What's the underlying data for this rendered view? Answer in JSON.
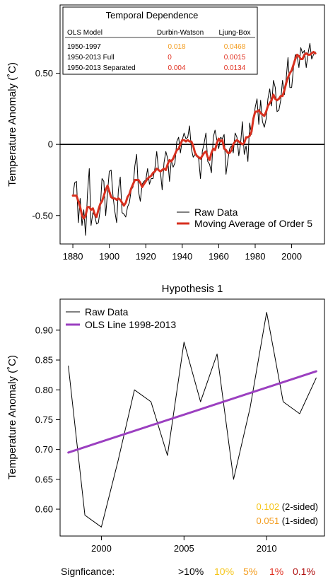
{
  "chart_data": [
    {
      "type": "line",
      "ylabel": "Temperature Anomaly (˚C)",
      "xlim": [
        1873,
        2018
      ],
      "ylim": [
        -0.7,
        0.98
      ],
      "x_ticks": [
        1880,
        1900,
        1920,
        1940,
        1960,
        1980,
        2000
      ],
      "y_ticks": [
        {
          "value": -0.5,
          "label": "-0.50"
        },
        {
          "value": 0,
          "label": "0"
        },
        {
          "value": 0.5,
          "label": "0.50"
        }
      ],
      "zero_line": true,
      "series": [
        {
          "name": "Raw Data",
          "color": "#000000",
          "x": [
            1880,
            1881,
            1882,
            1883,
            1884,
            1885,
            1886,
            1887,
            1888,
            1889,
            1890,
            1891,
            1892,
            1893,
            1894,
            1895,
            1896,
            1897,
            1898,
            1899,
            1900,
            1901,
            1902,
            1903,
            1904,
            1905,
            1906,
            1907,
            1908,
            1909,
            1910,
            1911,
            1912,
            1913,
            1914,
            1915,
            1916,
            1917,
            1918,
            1919,
            1920,
            1921,
            1922,
            1923,
            1924,
            1925,
            1926,
            1927,
            1928,
            1929,
            1930,
            1931,
            1932,
            1933,
            1934,
            1935,
            1936,
            1937,
            1938,
            1939,
            1940,
            1941,
            1942,
            1943,
            1944,
            1945,
            1946,
            1947,
            1948,
            1949,
            1950,
            1951,
            1952,
            1953,
            1954,
            1955,
            1956,
            1957,
            1958,
            1959,
            1960,
            1961,
            1962,
            1963,
            1964,
            1965,
            1966,
            1967,
            1968,
            1969,
            1970,
            1971,
            1972,
            1973,
            1974,
            1975,
            1976,
            1977,
            1978,
            1979,
            1980,
            1981,
            1982,
            1983,
            1984,
            1985,
            1986,
            1987,
            1988,
            1989,
            1990,
            1991,
            1992,
            1993,
            1994,
            1995,
            1996,
            1997,
            1998,
            1999,
            2000,
            2001,
            2002,
            2003,
            2004,
            2005,
            2006,
            2007,
            2008,
            2009,
            2010,
            2011,
            2012,
            2013
          ],
          "y": [
            -0.36,
            -0.27,
            -0.26,
            -0.55,
            -0.38,
            -0.57,
            -0.46,
            -0.64,
            -0.35,
            -0.17,
            -0.57,
            -0.48,
            -0.5,
            -0.56,
            -0.55,
            -0.46,
            -0.24,
            -0.26,
            -0.5,
            -0.34,
            -0.19,
            -0.18,
            -0.36,
            -0.47,
            -0.55,
            -0.32,
            -0.23,
            -0.48,
            -0.49,
            -0.51,
            -0.44,
            -0.41,
            -0.32,
            -0.3,
            -0.15,
            -0.07,
            -0.33,
            -0.4,
            -0.28,
            -0.26,
            -0.25,
            -0.17,
            -0.28,
            -0.24,
            -0.24,
            -0.17,
            -0.05,
            -0.18,
            -0.19,
            -0.32,
            -0.13,
            -0.05,
            -0.1,
            -0.26,
            -0.11,
            -0.16,
            -0.13,
            0.02,
            0.05,
            -0.06,
            0.03,
            0.08,
            0.04,
            0.05,
            0.13,
            -0.03,
            -0.09,
            -0.07,
            -0.08,
            -0.1,
            -0.24,
            -0.05,
            0.01,
            0.08,
            -0.12,
            -0.14,
            -0.2,
            0.05,
            0.1,
            0.03,
            -0.03,
            0.05,
            0.04,
            0.07,
            -0.21,
            -0.11,
            -0.03,
            -0.01,
            -0.06,
            0.08,
            0.05,
            -0.08,
            0.01,
            0.16,
            -0.07,
            -0.01,
            -0.12,
            0.15,
            0.07,
            0.16,
            0.26,
            0.32,
            0.14,
            0.31,
            0.16,
            0.12,
            0.18,
            0.32,
            0.39,
            0.27,
            0.45,
            0.4,
            0.23,
            0.24,
            0.31,
            0.45,
            0.35,
            0.46,
            0.61,
            0.4,
            0.4,
            0.54,
            0.63,
            0.62,
            0.54,
            0.68,
            0.64,
            0.66,
            0.54,
            0.64,
            0.71,
            0.6,
            0.63,
            0.65
          ]
        },
        {
          "name": "Moving Average of Order 5",
          "color": "#d7301f",
          "x": [
            1880,
            1881,
            1882,
            1883,
            1884,
            1885,
            1886,
            1887,
            1888,
            1889,
            1890,
            1891,
            1892,
            1893,
            1894,
            1895,
            1896,
            1897,
            1898,
            1899,
            1900,
            1901,
            1902,
            1903,
            1904,
            1905,
            1906,
            1907,
            1908,
            1909,
            1910,
            1911,
            1912,
            1913,
            1914,
            1915,
            1916,
            1917,
            1918,
            1919,
            1920,
            1921,
            1922,
            1923,
            1924,
            1925,
            1926,
            1927,
            1928,
            1929,
            1930,
            1931,
            1932,
            1933,
            1934,
            1935,
            1936,
            1937,
            1938,
            1939,
            1940,
            1941,
            1942,
            1943,
            1944,
            1945,
            1946,
            1947,
            1948,
            1949,
            1950,
            1951,
            1952,
            1953,
            1954,
            1955,
            1956,
            1957,
            1958,
            1959,
            1960,
            1961,
            1962,
            1963,
            1964,
            1965,
            1966,
            1967,
            1968,
            1969,
            1970,
            1971,
            1972,
            1973,
            1974,
            1975,
            1976,
            1977,
            1978,
            1979,
            1980,
            1981,
            1982,
            1983,
            1984,
            1985,
            1986,
            1987,
            1988,
            1989,
            1990,
            1991,
            1992,
            1993,
            1994,
            1995,
            1996,
            1997,
            1998,
            1999,
            2000,
            2001,
            2002,
            2003,
            2004,
            2005,
            2006,
            2007,
            2008,
            2009,
            2010,
            2011,
            2012,
            2013
          ],
          "y": [
            -0.36,
            -0.36,
            -0.36,
            -0.4,
            -0.44,
            -0.5,
            -0.52,
            -0.5,
            -0.44,
            -0.44,
            -0.46,
            -0.45,
            -0.49,
            -0.51,
            -0.46,
            -0.42,
            -0.4,
            -0.36,
            -0.32,
            -0.29,
            -0.33,
            -0.37,
            -0.38,
            -0.38,
            -0.39,
            -0.38,
            -0.39,
            -0.41,
            -0.43,
            -0.41,
            -0.37,
            -0.35,
            -0.31,
            -0.28,
            -0.25,
            -0.25,
            -0.25,
            -0.27,
            -0.3,
            -0.28,
            -0.26,
            -0.24,
            -0.23,
            -0.22,
            -0.2,
            -0.19,
            -0.17,
            -0.18,
            -0.19,
            -0.18,
            -0.17,
            -0.18,
            -0.14,
            -0.11,
            -0.12,
            -0.1,
            -0.07,
            -0.04,
            -0.03,
            0.0,
            0.03,
            0.03,
            0.02,
            0.03,
            0.02,
            0.02,
            -0.01,
            -0.06,
            -0.08,
            -0.09,
            -0.1,
            -0.08,
            -0.06,
            -0.05,
            -0.09,
            -0.11,
            -0.06,
            -0.03,
            -0.04,
            0.01,
            0.04,
            0.02,
            0.03,
            -0.03,
            -0.04,
            -0.06,
            -0.06,
            -0.04,
            0.0,
            0.02,
            0.03,
            0.02,
            0.01,
            0.0,
            0.01,
            0.05,
            0.05,
            0.06,
            0.09,
            0.18,
            0.23,
            0.23,
            0.24,
            0.22,
            0.21,
            0.2,
            0.23,
            0.27,
            0.29,
            0.31,
            0.35,
            0.32,
            0.31,
            0.32,
            0.34,
            0.34,
            0.38,
            0.43,
            0.47,
            0.5,
            0.52,
            0.56,
            0.6,
            0.63,
            0.62,
            0.6,
            0.6,
            0.63,
            0.64,
            0.63,
            0.63,
            0.64,
            0.65,
            0.64
          ]
        }
      ],
      "legend": {
        "position": "bottom-right",
        "entries": [
          {
            "label": "Raw Data",
            "color": "#000000",
            "width": 1
          },
          {
            "label": "Moving Average of Order 5",
            "color": "#d7301f",
            "width": 3
          }
        ]
      },
      "table": {
        "title": "Temporal Dependence",
        "headers": [
          "OLS Model",
          "Durbin-Watson",
          "Ljung-Box"
        ],
        "rows": [
          {
            "model": "1950-1997",
            "dw": "0.018",
            "dw_color": "#f39c1e",
            "lb": "0.0468",
            "lb_color": "#f39c1e"
          },
          {
            "model": "1950-2013 Full",
            "dw": "0",
            "dw_color": "#e03020",
            "lb": "0.0015",
            "lb_color": "#e03020"
          },
          {
            "model": "1950-2013 Separated",
            "dw": "0.004",
            "dw_color": "#e03020",
            "lb": "0.0134",
            "lb_color": "#e03020"
          }
        ]
      }
    },
    {
      "type": "line",
      "title": "Hypothesis 1",
      "ylabel": "Temperature Anomaly (˚C)",
      "xlim": [
        1997.5,
        2013.5
      ],
      "ylim": [
        0.555,
        0.952
      ],
      "x_ticks": [
        2000,
        2005,
        2010
      ],
      "y_ticks": [
        {
          "value": 0.6,
          "label": "0.60"
        },
        {
          "value": 0.65,
          "label": "0.65"
        },
        {
          "value": 0.7,
          "label": "0.70"
        },
        {
          "value": 0.75,
          "label": "0.75"
        },
        {
          "value": 0.8,
          "label": "0.80"
        },
        {
          "value": 0.85,
          "label": "0.85"
        },
        {
          "value": 0.9,
          "label": "0.90"
        }
      ],
      "series": [
        {
          "name": "Raw Data",
          "color": "#000000",
          "x": [
            1998,
            1999,
            2000,
            2001,
            2002,
            2003,
            2004,
            2005,
            2006,
            2007,
            2008,
            2009,
            2010,
            2011,
            2012,
            2013
          ],
          "y": [
            0.84,
            0.59,
            0.57,
            0.68,
            0.8,
            0.78,
            0.69,
            0.88,
            0.78,
            0.86,
            0.65,
            0.77,
            0.93,
            0.78,
            0.76,
            0.82
          ]
        },
        {
          "name": "OLS Line 1998-2013",
          "color": "#9b3fc0",
          "x": [
            1998,
            2013
          ],
          "y": [
            0.695,
            0.831
          ]
        }
      ],
      "legend": {
        "position": "top-left",
        "entries": [
          {
            "label": "Raw Data",
            "color": "#000000",
            "width": 1
          },
          {
            "label": "OLS Line 1998-2013",
            "color": "#9b3fc0",
            "width": 3
          }
        ]
      },
      "annotations": [
        {
          "value": "0.102",
          "value_color": "#f5c518",
          "text": "(2-sided)"
        },
        {
          "value": "0.051",
          "value_color": "#f39c1e",
          "text": "(1-sided)"
        }
      ]
    }
  ],
  "significance": {
    "label": "Signficance:",
    "levels": [
      {
        "text": ">10%",
        "color": "#000000"
      },
      {
        "text": "10%",
        "color": "#f5c518"
      },
      {
        "text": "5%",
        "color": "#f39c1e"
      },
      {
        "text": "1%",
        "color": "#e03020"
      },
      {
        "text": "0.1%",
        "color": "#b01010"
      }
    ]
  }
}
